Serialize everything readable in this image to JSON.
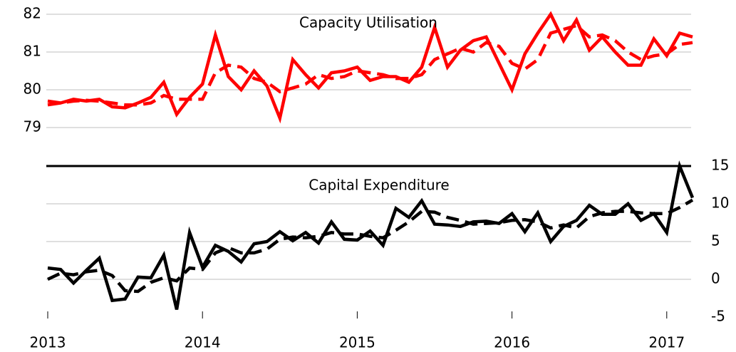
{
  "chart_data": [
    {
      "type": "line",
      "title": "Capacity Utilisation",
      "axis_side": "left",
      "ylim": [
        78,
        82
      ],
      "yticks": [
        79,
        80,
        81,
        82
      ],
      "grid": true,
      "series": [
        {
          "color": "#ff0000",
          "values": [
            79.7,
            79.65,
            79.75,
            79.7,
            79.75,
            79.55,
            79.52,
            79.65,
            79.8,
            80.2,
            79.35,
            79.8,
            80.15,
            81.45,
            80.35,
            80.0,
            80.5,
            80.1,
            79.25,
            80.8,
            80.4,
            80.05,
            80.45,
            80.5,
            80.6,
            80.25,
            80.35,
            80.35,
            80.2,
            80.6,
            81.65,
            80.6,
            81.05,
            81.3,
            81.4,
            80.7,
            80.0,
            80.95,
            81.5,
            82.0,
            81.3,
            81.85,
            81.05,
            81.4,
            81.0,
            80.65,
            80.65,
            81.35,
            80.9,
            81.5,
            81.4
          ]
        },
        {
          "color": "#ff0000",
          "dashed": true,
          "values": [
            79.6,
            79.65,
            79.7,
            79.72,
            79.7,
            79.65,
            79.6,
            79.6,
            79.65,
            79.85,
            79.75,
            79.75,
            79.75,
            80.45,
            80.65,
            80.6,
            80.3,
            80.2,
            79.95,
            80.05,
            80.15,
            80.4,
            80.3,
            80.35,
            80.5,
            80.45,
            80.4,
            80.3,
            80.3,
            80.4,
            80.8,
            80.95,
            81.1,
            81.0,
            81.25,
            81.15,
            80.7,
            80.55,
            80.8,
            81.5,
            81.6,
            81.7,
            81.4,
            81.45,
            81.3,
            81.0,
            80.8,
            80.9,
            80.95,
            81.2,
            81.25
          ]
        }
      ]
    },
    {
      "type": "line",
      "title": "Capital Expenditure",
      "axis_side": "right",
      "ylim": [
        -5,
        15
      ],
      "yticks": [
        -5,
        0,
        5,
        10,
        15
      ],
      "grid": true,
      "frame": "top",
      "categories": [
        "2013",
        null,
        null,
        null,
        null,
        null,
        null,
        null,
        null,
        null,
        null,
        null,
        "2014",
        null,
        null,
        null,
        null,
        null,
        null,
        null,
        null,
        null,
        null,
        null,
        "2015",
        null,
        null,
        null,
        null,
        null,
        null,
        null,
        null,
        null,
        null,
        null,
        "2016",
        null,
        null,
        null,
        null,
        null,
        null,
        null,
        null,
        null,
        null,
        null,
        "2017",
        null,
        null
      ],
      "series": [
        {
          "color": "#000000",
          "values": [
            1.5,
            1.3,
            -0.5,
            1.2,
            2.8,
            -2.8,
            -2.6,
            0.3,
            0.2,
            3.2,
            -4.0,
            6.2,
            1.6,
            4.5,
            3.7,
            2.3,
            4.7,
            5.0,
            6.3,
            5.1,
            6.2,
            4.8,
            7.6,
            5.3,
            5.2,
            6.4,
            4.5,
            9.4,
            8.2,
            10.4,
            7.3,
            7.2,
            7.0,
            7.6,
            7.7,
            7.4,
            8.7,
            6.3,
            8.8,
            5.0,
            7.0,
            7.8,
            9.8,
            8.6,
            8.6,
            10.0,
            7.8,
            8.7,
            6.2,
            15.0,
            10.8
          ]
        },
        {
          "color": "#000000",
          "dashed": true,
          "values": [
            0,
            0.8,
            0.6,
            1.0,
            1.2,
            0.5,
            -1.5,
            -1.6,
            -0.4,
            0.2,
            -0.2,
            1.5,
            1.3,
            3.5,
            4.2,
            3.5,
            3.5,
            4.0,
            5.3,
            5.6,
            5.5,
            5.7,
            6.2,
            6.0,
            6.0,
            5.7,
            5.5,
            6.5,
            7.6,
            9.0,
            8.9,
            8.2,
            7.8,
            7.3,
            7.4,
            7.5,
            7.8,
            7.9,
            7.6,
            6.8,
            7.2,
            6.8,
            8.3,
            8.8,
            9.0,
            9.0,
            8.8,
            8.7,
            8.7,
            9.5,
            10.5
          ]
        }
      ]
    }
  ]
}
